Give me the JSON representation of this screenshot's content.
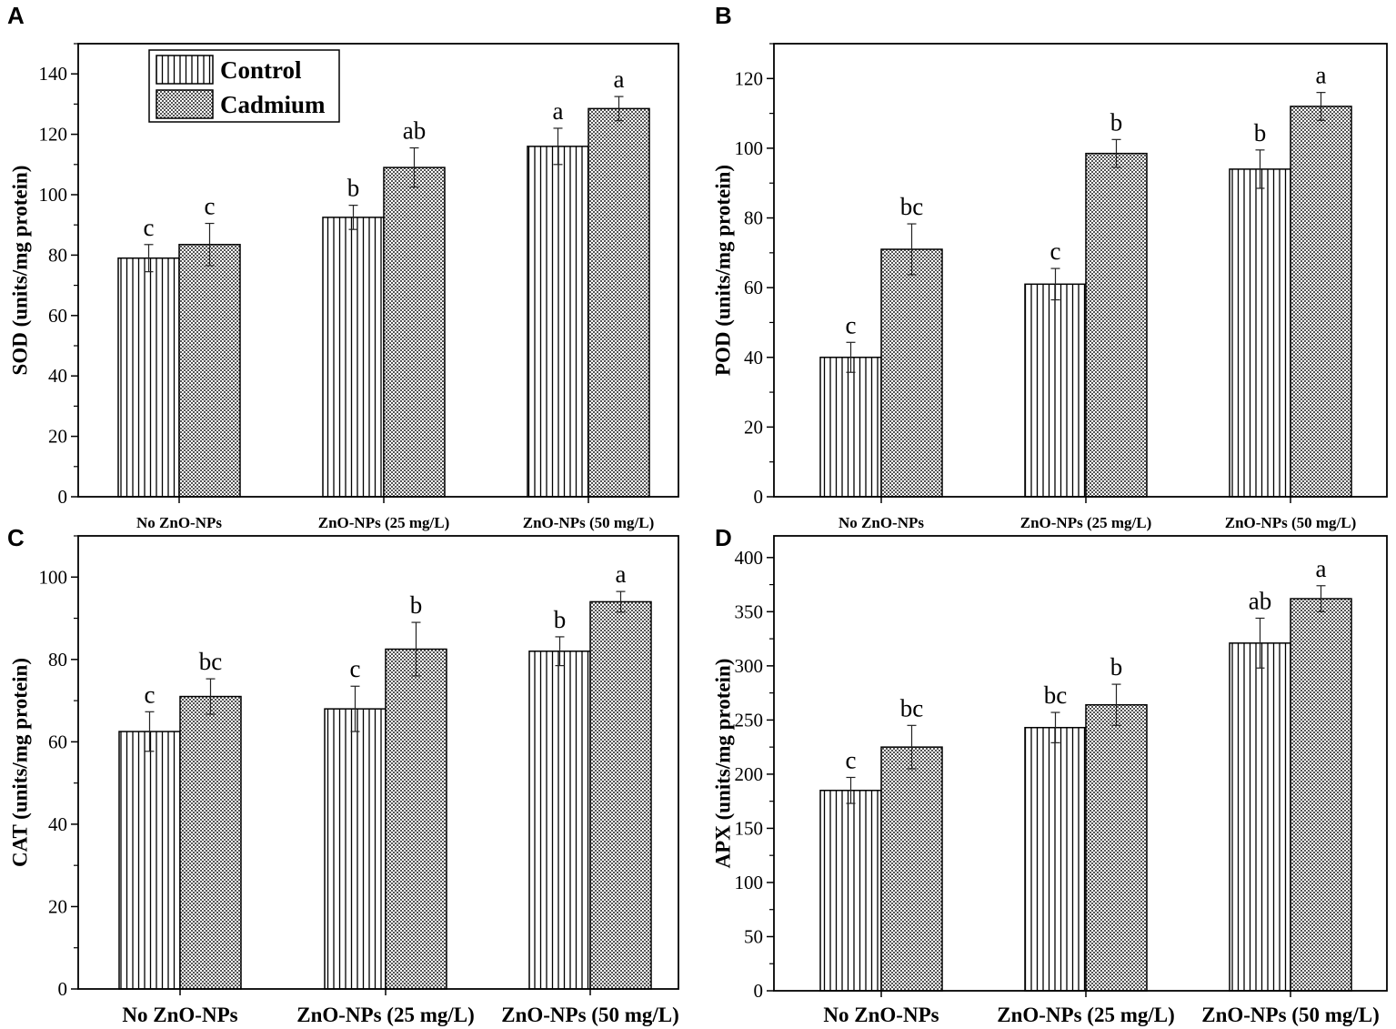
{
  "legend": {
    "items": [
      {
        "name": "Control",
        "pattern": "vertical-lines"
      },
      {
        "name": "Cadmium",
        "pattern": "dots"
      }
    ]
  },
  "chart_data": [
    {
      "panel": "A",
      "type": "bar",
      "ylabel": "SOD (units/mg protein)",
      "xlabel": "",
      "ylim": [
        0,
        150
      ],
      "yticks": [
        0,
        20,
        40,
        60,
        80,
        100,
        120,
        140
      ],
      "categories": [
        "No ZnO-NPs",
        "ZnO-NPs (25 mg/L)",
        "ZnO-NPs (50 mg/L)"
      ],
      "series": [
        {
          "name": "Control",
          "values": [
            79,
            92.5,
            116
          ],
          "errors": [
            4.5,
            4,
            6
          ],
          "letters": [
            "c",
            "b",
            "a"
          ]
        },
        {
          "name": "Cadmium",
          "values": [
            83.5,
            109,
            128.5
          ],
          "errors": [
            7,
            6.5,
            4
          ],
          "letters": [
            "c",
            "ab",
            "a"
          ]
        }
      ],
      "legend": true,
      "legend_position": "top-left"
    },
    {
      "panel": "B",
      "type": "bar",
      "ylabel": "POD (units/mg protein)",
      "xlabel": "",
      "ylim": [
        0,
        130
      ],
      "yticks": [
        0,
        20,
        40,
        60,
        80,
        100,
        120
      ],
      "categories": [
        "No ZnO-NPs",
        "ZnO-NPs (25 mg/L)",
        "ZnO-NPs (50 mg/L)"
      ],
      "series": [
        {
          "name": "Control",
          "values": [
            40,
            61,
            94
          ],
          "errors": [
            4.3,
            4.5,
            5.5
          ],
          "letters": [
            "c",
            "c",
            "b"
          ]
        },
        {
          "name": "Cadmium",
          "values": [
            71,
            98.5,
            112
          ],
          "errors": [
            7.3,
            4,
            4
          ],
          "letters": [
            "bc",
            "b",
            "a"
          ]
        }
      ],
      "legend": false
    },
    {
      "panel": "C",
      "type": "bar",
      "ylabel": "CAT (units/mg protein)",
      "xlabel": "",
      "ylim": [
        0,
        110
      ],
      "yticks": [
        0,
        20,
        40,
        60,
        80,
        100
      ],
      "categories": [
        "No ZnO-NPs",
        "ZnO-NPs (25 mg/L)",
        "ZnO-NPs (50 mg/L)"
      ],
      "series": [
        {
          "name": "Control",
          "values": [
            62.5,
            68,
            82
          ],
          "errors": [
            4.8,
            5.5,
            3.5
          ],
          "letters": [
            "c",
            "c",
            "b"
          ]
        },
        {
          "name": "Cadmium",
          "values": [
            71,
            82.5,
            94
          ],
          "errors": [
            4.3,
            6.5,
            2.5
          ],
          "letters": [
            "bc",
            "b",
            "a"
          ]
        }
      ],
      "legend": false
    },
    {
      "panel": "D",
      "type": "bar",
      "ylabel": "APX (units/mg protein)",
      "xlabel": "",
      "ylim": [
        0,
        420
      ],
      "yticks": [
        0,
        50,
        100,
        150,
        200,
        250,
        300,
        350,
        400
      ],
      "categories": [
        "No ZnO-NPs",
        "ZnO-NPs (25 mg/L)",
        "ZnO-NPs (50 mg/L)"
      ],
      "series": [
        {
          "name": "Control",
          "values": [
            185,
            243,
            321
          ],
          "errors": [
            12,
            14,
            23
          ],
          "letters": [
            "c",
            "bc",
            "ab"
          ]
        },
        {
          "name": "Cadmium",
          "values": [
            225,
            264,
            362
          ],
          "errors": [
            20,
            19,
            12
          ],
          "letters": [
            "bc",
            "b",
            "a"
          ]
        }
      ],
      "legend": false
    }
  ]
}
